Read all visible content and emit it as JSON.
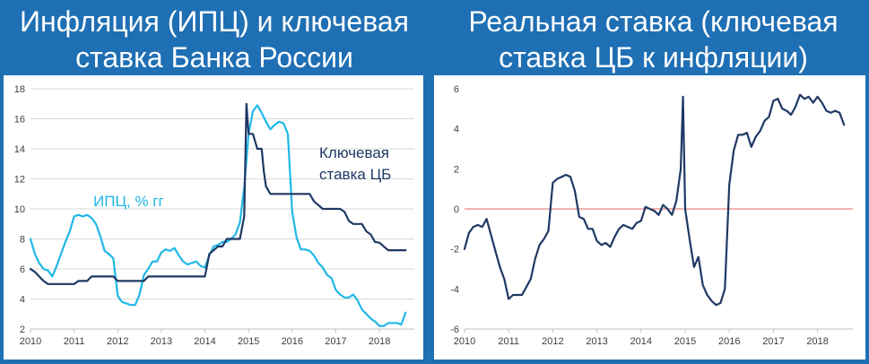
{
  "titles": {
    "left_line1": "Инфляция (ИПЦ) и ключевая",
    "left_line2": "ставка Банка России",
    "right_line1": "Реальная ставка (ключевая",
    "right_line2": "ставка ЦБ к инфляции)"
  },
  "colors": {
    "background": "#1f6fb4",
    "cpi": "#1fb8e6",
    "key_rate": "#1f3864",
    "real_rate": "#1f3864",
    "zero_line": "#e06666"
  },
  "chart_data": [
    {
      "type": "line",
      "title": "Инфляция (ИПЦ) и ключевая ставка Банка России",
      "xlabel": "",
      "ylabel": "",
      "xlim": [
        2010,
        2018.8
      ],
      "ylim": [
        2,
        18
      ],
      "x_ticks": [
        "2010",
        "2011",
        "2012",
        "2013",
        "2014",
        "2015",
        "2016",
        "2017",
        "2018"
      ],
      "y_ticks": [
        "2",
        "4",
        "6",
        "8",
        "10",
        "12",
        "14",
        "16",
        "18"
      ],
      "grid": true,
      "series": [
        {
          "name": "ИПЦ, % гг",
          "color": "#1fb8e6",
          "points": [
            [
              2010.0,
              8.0
            ],
            [
              2010.1,
              7.0
            ],
            [
              2010.2,
              6.4
            ],
            [
              2010.3,
              6.0
            ],
            [
              2010.4,
              5.9
            ],
            [
              2010.5,
              5.5
            ],
            [
              2010.6,
              6.2
            ],
            [
              2010.7,
              7.0
            ],
            [
              2010.8,
              7.8
            ],
            [
              2010.9,
              8.5
            ],
            [
              2011.0,
              9.5
            ],
            [
              2011.1,
              9.6
            ],
            [
              2011.2,
              9.5
            ],
            [
              2011.3,
              9.6
            ],
            [
              2011.4,
              9.4
            ],
            [
              2011.5,
              9.0
            ],
            [
              2011.6,
              8.2
            ],
            [
              2011.7,
              7.2
            ],
            [
              2011.8,
              7.0
            ],
            [
              2011.9,
              6.7
            ],
            [
              2012.0,
              4.2
            ],
            [
              2012.1,
              3.8
            ],
            [
              2012.2,
              3.7
            ],
            [
              2012.3,
              3.6
            ],
            [
              2012.4,
              3.6
            ],
            [
              2012.5,
              4.3
            ],
            [
              2012.6,
              5.6
            ],
            [
              2012.7,
              6.0
            ],
            [
              2012.8,
              6.5
            ],
            [
              2012.9,
              6.5
            ],
            [
              2013.0,
              7.1
            ],
            [
              2013.1,
              7.3
            ],
            [
              2013.2,
              7.2
            ],
            [
              2013.3,
              7.4
            ],
            [
              2013.4,
              6.9
            ],
            [
              2013.5,
              6.5
            ],
            [
              2013.6,
              6.3
            ],
            [
              2013.7,
              6.4
            ],
            [
              2013.8,
              6.5
            ],
            [
              2013.9,
              6.2
            ],
            [
              2014.0,
              6.1
            ],
            [
              2014.1,
              6.9
            ],
            [
              2014.2,
              7.5
            ],
            [
              2014.3,
              7.6
            ],
            [
              2014.4,
              7.8
            ],
            [
              2014.5,
              7.8
            ],
            [
              2014.6,
              8.0
            ],
            [
              2014.7,
              8.3
            ],
            [
              2014.8,
              9.1
            ],
            [
              2014.9,
              11.4
            ],
            [
              2015.0,
              15.0
            ],
            [
              2015.1,
              16.5
            ],
            [
              2015.2,
              16.9
            ],
            [
              2015.3,
              16.4
            ],
            [
              2015.4,
              15.8
            ],
            [
              2015.5,
              15.3
            ],
            [
              2015.6,
              15.6
            ],
            [
              2015.7,
              15.8
            ],
            [
              2015.8,
              15.7
            ],
            [
              2015.9,
              15.0
            ],
            [
              2016.0,
              9.8
            ],
            [
              2016.1,
              8.1
            ],
            [
              2016.2,
              7.3
            ],
            [
              2016.3,
              7.3
            ],
            [
              2016.4,
              7.2
            ],
            [
              2016.5,
              6.9
            ],
            [
              2016.6,
              6.4
            ],
            [
              2016.7,
              6.1
            ],
            [
              2016.8,
              5.6
            ],
            [
              2016.9,
              5.4
            ],
            [
              2017.0,
              4.6
            ],
            [
              2017.1,
              4.3
            ],
            [
              2017.2,
              4.1
            ],
            [
              2017.3,
              4.1
            ],
            [
              2017.4,
              4.3
            ],
            [
              2017.5,
              3.9
            ],
            [
              2017.6,
              3.3
            ],
            [
              2017.7,
              3.0
            ],
            [
              2017.8,
              2.7
            ],
            [
              2017.9,
              2.5
            ],
            [
              2018.0,
              2.2
            ],
            [
              2018.1,
              2.2
            ],
            [
              2018.2,
              2.4
            ],
            [
              2018.3,
              2.4
            ],
            [
              2018.4,
              2.4
            ],
            [
              2018.5,
              2.3
            ],
            [
              2018.6,
              3.1
            ]
          ]
        },
        {
          "name": "Ключевая ставка ЦБ",
          "color": "#1f3864",
          "points": [
            [
              2010.0,
              6.0
            ],
            [
              2010.1,
              5.8
            ],
            [
              2010.2,
              5.5
            ],
            [
              2010.3,
              5.2
            ],
            [
              2010.4,
              5.0
            ],
            [
              2010.9,
              5.0
            ],
            [
              2011.0,
              5.0
            ],
            [
              2011.1,
              5.2
            ],
            [
              2011.3,
              5.2
            ],
            [
              2011.4,
              5.5
            ],
            [
              2011.9,
              5.5
            ],
            [
              2012.0,
              5.2
            ],
            [
              2012.6,
              5.2
            ],
            [
              2012.7,
              5.5
            ],
            [
              2013.9,
              5.5
            ],
            [
              2014.0,
              5.5
            ],
            [
              2014.1,
              7.0
            ],
            [
              2014.3,
              7.5
            ],
            [
              2014.4,
              7.5
            ],
            [
              2014.5,
              8.0
            ],
            [
              2014.8,
              8.0
            ],
            [
              2014.9,
              9.5
            ],
            [
              2014.95,
              17.0
            ],
            [
              2015.0,
              15.0
            ],
            [
              2015.1,
              15.0
            ],
            [
              2015.2,
              14.0
            ],
            [
              2015.3,
              14.0
            ],
            [
              2015.35,
              12.5
            ],
            [
              2015.4,
              11.5
            ],
            [
              2015.5,
              11.0
            ],
            [
              2016.4,
              11.0
            ],
            [
              2016.5,
              10.5
            ],
            [
              2016.7,
              10.0
            ],
            [
              2017.1,
              10.0
            ],
            [
              2017.2,
              9.8
            ],
            [
              2017.3,
              9.2
            ],
            [
              2017.4,
              9.0
            ],
            [
              2017.6,
              9.0
            ],
            [
              2017.7,
              8.5
            ],
            [
              2017.8,
              8.3
            ],
            [
              2017.9,
              7.8
            ],
            [
              2018.0,
              7.75
            ],
            [
              2018.1,
              7.5
            ],
            [
              2018.2,
              7.25
            ],
            [
              2018.6,
              7.25
            ]
          ]
        }
      ],
      "annotations": [
        "ИПЦ, % гг",
        "Ключевая",
        "ставка ЦБ"
      ]
    },
    {
      "type": "line",
      "title": "Реальная ставка (ключевая ставка ЦБ к инфляции)",
      "xlabel": "",
      "ylabel": "",
      "xlim": [
        2010,
        2018.8
      ],
      "ylim": [
        -6,
        6
      ],
      "x_ticks": [
        "2010",
        "2011",
        "2012",
        "2013",
        "2014",
        "2015",
        "2016",
        "2017",
        "2018"
      ],
      "y_ticks": [
        "-6",
        "-4",
        "-2",
        "0",
        "2",
        "4",
        "6"
      ],
      "grid": false,
      "reference_line": 0,
      "series": [
        {
          "name": "",
          "color": "#1f3864",
          "points": [
            [
              2010.0,
              -2.0
            ],
            [
              2010.1,
              -1.2
            ],
            [
              2010.2,
              -0.9
            ],
            [
              2010.3,
              -0.8
            ],
            [
              2010.4,
              -0.9
            ],
            [
              2010.5,
              -0.5
            ],
            [
              2010.6,
              -1.3
            ],
            [
              2010.7,
              -2.1
            ],
            [
              2010.8,
              -2.9
            ],
            [
              2010.9,
              -3.5
            ],
            [
              2011.0,
              -4.5
            ],
            [
              2011.1,
              -4.3
            ],
            [
              2011.2,
              -4.3
            ],
            [
              2011.3,
              -4.3
            ],
            [
              2011.4,
              -3.9
            ],
            [
              2011.5,
              -3.5
            ],
            [
              2011.6,
              -2.5
            ],
            [
              2011.7,
              -1.8
            ],
            [
              2011.8,
              -1.5
            ],
            [
              2011.9,
              -1.1
            ],
            [
              2012.0,
              1.3
            ],
            [
              2012.1,
              1.5
            ],
            [
              2012.2,
              1.6
            ],
            [
              2012.3,
              1.7
            ],
            [
              2012.4,
              1.6
            ],
            [
              2012.5,
              0.9
            ],
            [
              2012.6,
              -0.4
            ],
            [
              2012.7,
              -0.5
            ],
            [
              2012.8,
              -1.0
            ],
            [
              2012.9,
              -1.0
            ],
            [
              2013.0,
              -1.6
            ],
            [
              2013.1,
              -1.8
            ],
            [
              2013.2,
              -1.7
            ],
            [
              2013.3,
              -1.9
            ],
            [
              2013.4,
              -1.4
            ],
            [
              2013.5,
              -1.0
            ],
            [
              2013.6,
              -0.8
            ],
            [
              2013.7,
              -0.9
            ],
            [
              2013.8,
              -1.0
            ],
            [
              2013.9,
              -0.7
            ],
            [
              2014.0,
              -0.6
            ],
            [
              2014.1,
              0.1
            ],
            [
              2014.2,
              0.0
            ],
            [
              2014.3,
              -0.1
            ],
            [
              2014.4,
              -0.3
            ],
            [
              2014.5,
              0.2
            ],
            [
              2014.6,
              0.0
            ],
            [
              2014.7,
              -0.3
            ],
            [
              2014.8,
              0.4
            ],
            [
              2014.9,
              2.0
            ],
            [
              2014.95,
              5.6
            ],
            [
              2015.0,
              0.0
            ],
            [
              2015.1,
              -1.5
            ],
            [
              2015.2,
              -2.9
            ],
            [
              2015.3,
              -2.4
            ],
            [
              2015.4,
              -3.8
            ],
            [
              2015.5,
              -4.3
            ],
            [
              2015.6,
              -4.6
            ],
            [
              2015.7,
              -4.8
            ],
            [
              2015.8,
              -4.7
            ],
            [
              2015.9,
              -4.0
            ],
            [
              2016.0,
              1.2
            ],
            [
              2016.1,
              2.9
            ],
            [
              2016.2,
              3.7
            ],
            [
              2016.3,
              3.7
            ],
            [
              2016.4,
              3.8
            ],
            [
              2016.5,
              3.1
            ],
            [
              2016.6,
              3.6
            ],
            [
              2016.7,
              3.9
            ],
            [
              2016.8,
              4.4
            ],
            [
              2016.9,
              4.6
            ],
            [
              2017.0,
              5.4
            ],
            [
              2017.1,
              5.5
            ],
            [
              2017.2,
              5.0
            ],
            [
              2017.3,
              4.9
            ],
            [
              2017.4,
              4.7
            ],
            [
              2017.5,
              5.1
            ],
            [
              2017.6,
              5.7
            ],
            [
              2017.7,
              5.5
            ],
            [
              2017.8,
              5.6
            ],
            [
              2017.9,
              5.3
            ],
            [
              2018.0,
              5.6
            ],
            [
              2018.1,
              5.3
            ],
            [
              2018.2,
              4.9
            ],
            [
              2018.3,
              4.8
            ],
            [
              2018.4,
              4.9
            ],
            [
              2018.5,
              4.8
            ],
            [
              2018.6,
              4.2
            ]
          ]
        }
      ]
    }
  ]
}
